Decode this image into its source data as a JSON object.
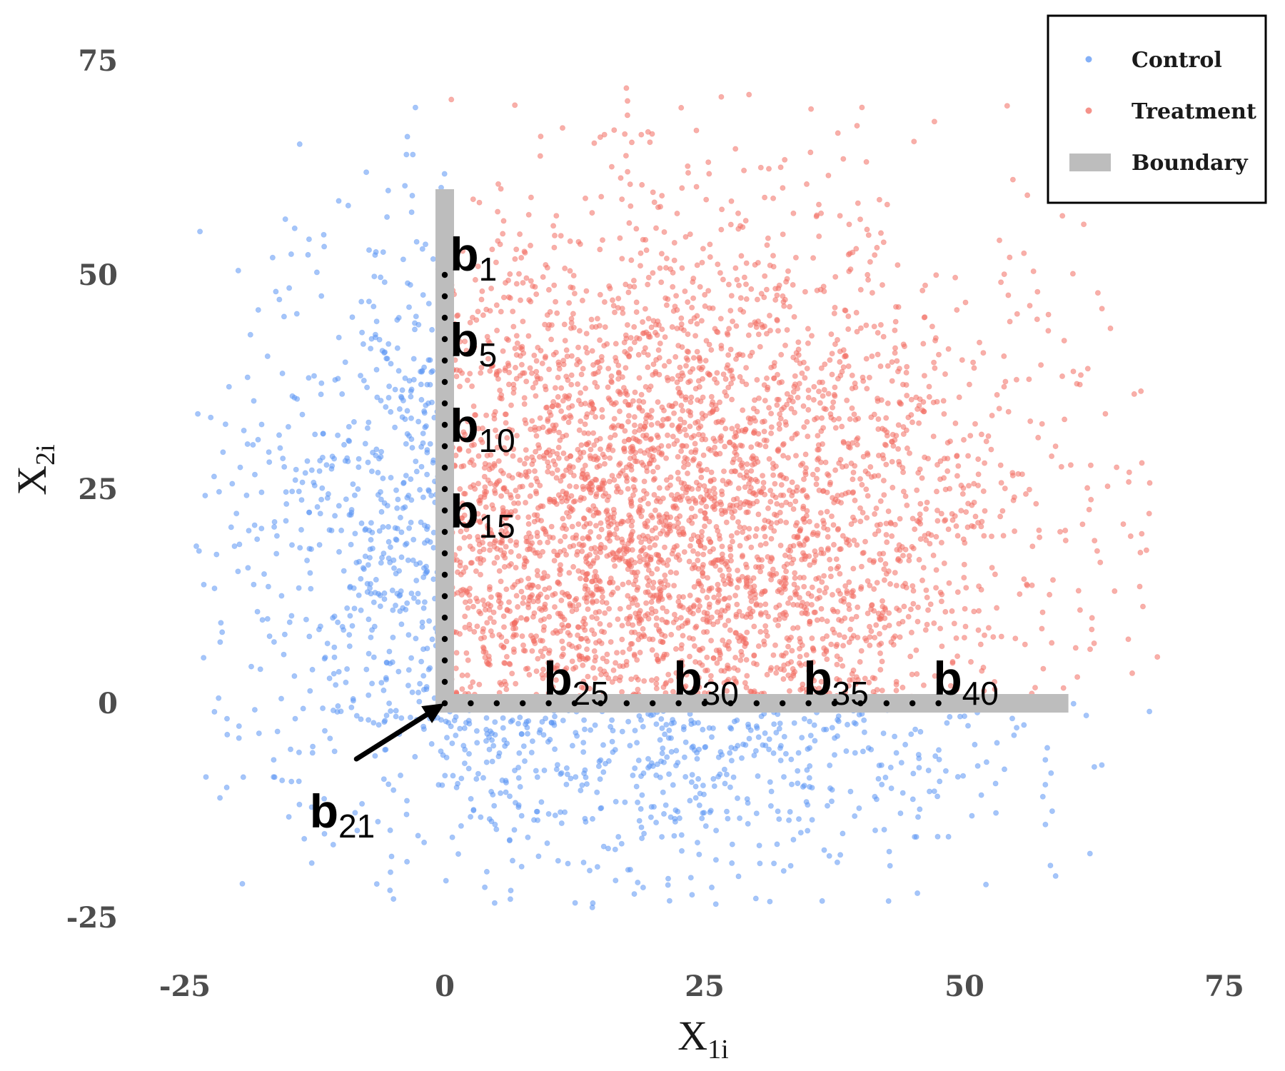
{
  "chart_data": {
    "type": "scatter",
    "xlabel": "X",
    "xlabel_sub": "1i",
    "ylabel": "X",
    "ylabel_sub": "2i",
    "xlim": [
      -25,
      75
    ],
    "ylim": [
      -25,
      75
    ],
    "xticks": [
      "-25",
      "0",
      "25",
      "50",
      "75"
    ],
    "yticks": [
      "-25",
      "0",
      "25",
      "50",
      "75"
    ],
    "grid": false,
    "legend_position": "top-right",
    "series": [
      {
        "name": "Control",
        "color": "#5b95f4",
        "marker": "circle",
        "alpha": 0.55,
        "n_points_approx": 1700
      },
      {
        "name": "Treatment",
        "color": "#f26d63",
        "marker": "circle",
        "alpha": 0.55,
        "n_points_approx": 3300
      }
    ],
    "boundary": {
      "name": "Boundary",
      "color": "#bdbdbd",
      "points": [
        [
          0,
          60
        ],
        [
          0,
          0
        ],
        [
          60,
          0
        ]
      ]
    },
    "boundary_points": {
      "color": "#000000",
      "vertical": {
        "x": 0,
        "y": [
          50,
          47.5,
          45,
          42.5,
          40,
          37.5,
          35,
          32.5,
          30,
          27.5,
          25,
          22.5,
          20,
          17.5,
          15,
          12.5,
          10,
          7.5,
          5,
          2.5
        ]
      },
      "horizontal": {
        "y": 0,
        "x": [
          0,
          2.5,
          5,
          7.5,
          10,
          12.5,
          15,
          17.5,
          20,
          22.5,
          25,
          27.5,
          30,
          32.5,
          35,
          37.5,
          40,
          42.5,
          45,
          47.5
        ]
      }
    },
    "annotations": [
      {
        "main": "b",
        "sub": "1",
        "x": 0.5,
        "y": 50.5
      },
      {
        "main": "b",
        "sub": "5",
        "x": 0.5,
        "y": 40.5
      },
      {
        "main": "b",
        "sub": "10",
        "x": 0.5,
        "y": 30.5
      },
      {
        "main": "b",
        "sub": "15",
        "x": 0.5,
        "y": 20.5
      },
      {
        "main": "b",
        "sub": "21",
        "x": -13,
        "y": -14.5,
        "arrow_to": [
          0,
          0
        ],
        "arrow_from": [
          -8.5,
          -6.5
        ]
      },
      {
        "main": "b",
        "sub": "25",
        "x": 9.5,
        "y": 1.0
      },
      {
        "main": "b",
        "sub": "30",
        "x": 22,
        "y": 1.0
      },
      {
        "main": "b",
        "sub": "35",
        "x": 34.5,
        "y": 1.0
      },
      {
        "main": "b",
        "sub": "40",
        "x": 47,
        "y": 1.0
      }
    ]
  }
}
